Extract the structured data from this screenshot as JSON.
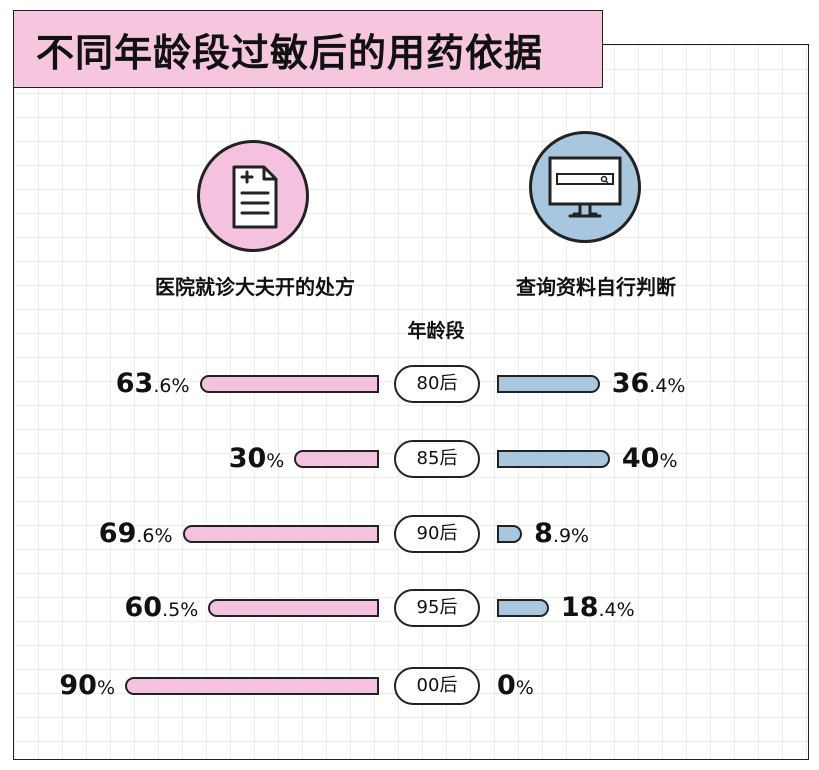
{
  "title": "不同年龄段过敏后的用药依据",
  "left_group": {
    "label": "医院就诊大夫开的处方",
    "icon": "prescription-document-icon",
    "color": "#f4c2de"
  },
  "right_group": {
    "label": "查询资料自行判断",
    "icon": "computer-search-icon",
    "color": "#a8c6de"
  },
  "axis_header": "年龄段",
  "rows": [
    {
      "cat": "80后",
      "left_main": "63",
      "left_unit": ".6%",
      "right_main": "36",
      "right_unit": ".4%"
    },
    {
      "cat": "85后",
      "left_main": "30",
      "left_unit": "%",
      "right_main": "40",
      "right_unit": "%"
    },
    {
      "cat": "90后",
      "left_main": "69",
      "left_unit": ".6%",
      "right_main": "8",
      "right_unit": ".9%"
    },
    {
      "cat": "95后",
      "left_main": "60",
      "left_unit": ".5%",
      "right_main": "18",
      "right_unit": ".4%"
    },
    {
      "cat": "00后",
      "left_main": "90",
      "left_unit": "%",
      "right_main": "0",
      "right_unit": "%"
    }
  ],
  "chart_data": {
    "type": "bar",
    "title": "不同年龄段过敏后的用药依据",
    "xlabel": "年龄段",
    "categories": [
      "80后",
      "85后",
      "90后",
      "95后",
      "00后"
    ],
    "series": [
      {
        "name": "医院就诊大夫开的处方",
        "values": [
          63.6,
          30,
          69.6,
          60.5,
          90
        ]
      },
      {
        "name": "查询资料自行判断",
        "values": [
          36.4,
          40,
          8.9,
          18.4,
          0
        ]
      }
    ]
  }
}
